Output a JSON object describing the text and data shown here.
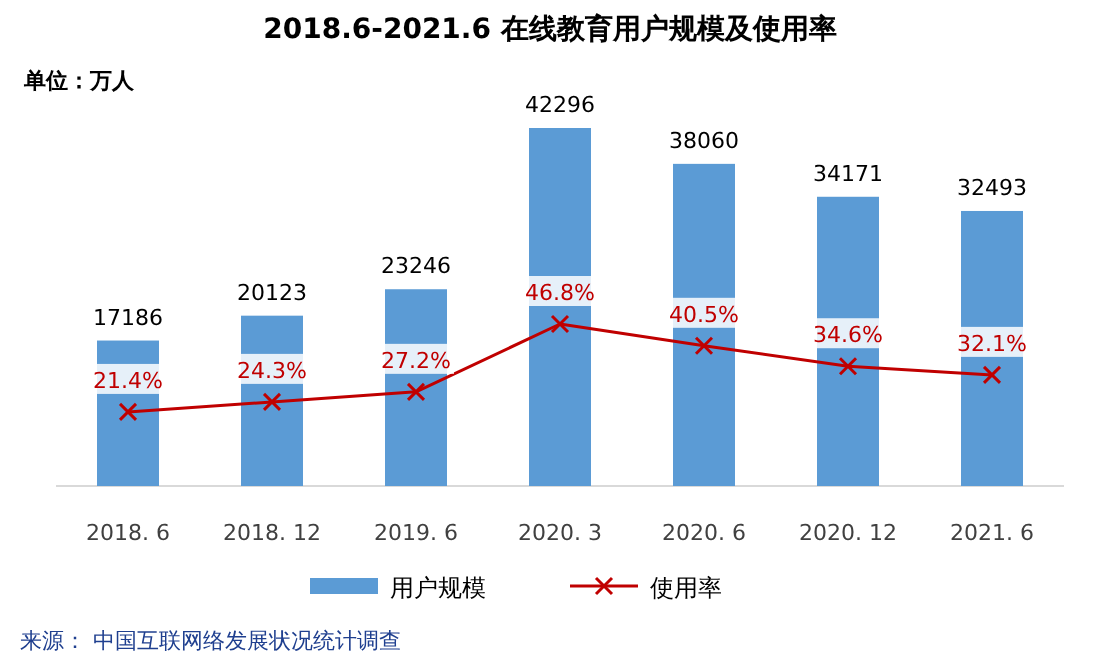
{
  "chart_data": {
    "type": "bar",
    "title": "2018.6-2021.6 在线教育用户规模及使用率",
    "subtitle": "单位：万人",
    "categories": [
      "2018. 6",
      "2018. 12",
      "2019. 6",
      "2020. 3",
      "2020. 6",
      "2020. 12",
      "2021. 6"
    ],
    "series": [
      {
        "name": "用户规模",
        "color": "#5b9bd5",
        "values": [
          17186,
          20123,
          23246,
          42296,
          38060,
          34171,
          32493
        ]
      },
      {
        "name": "使用率",
        "type": "line",
        "axis": "y2",
        "color": "#c00000",
        "marker": "cross",
        "values": [
          21.4,
          24.3,
          27.2,
          46.8,
          40.5,
          34.6,
          32.1
        ],
        "value_labels": [
          "21.4%",
          "24.3%",
          "27.2%",
          "46.8%",
          "40.5%",
          "34.6%",
          "32.1%"
        ]
      }
    ],
    "data_labels": true,
    "legend": "bottom",
    "annotations": [
      "来源： 中国互联网络发展状况统计调查"
    ]
  }
}
